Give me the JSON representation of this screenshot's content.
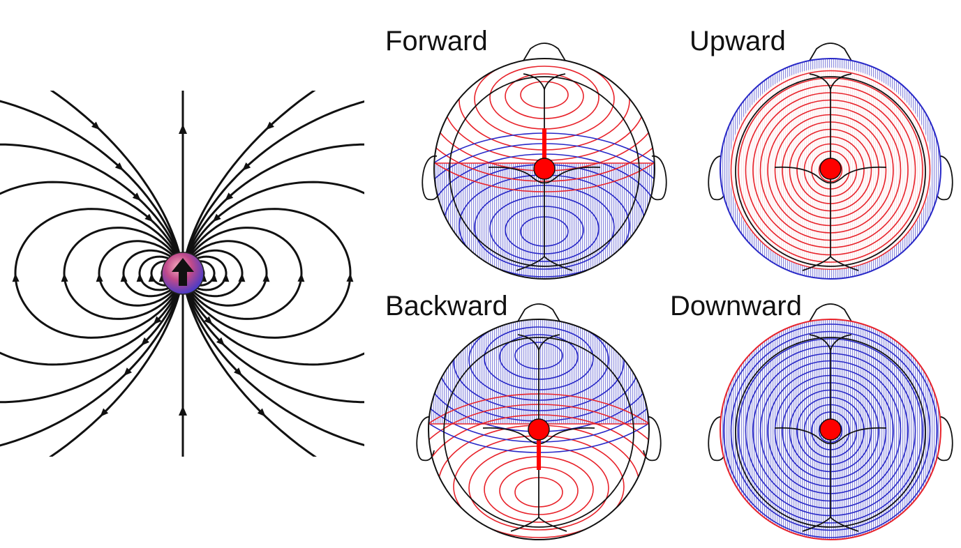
{
  "panels": {
    "forward": {
      "label": "Forward"
    },
    "upward": {
      "label": "Upward"
    },
    "backward": {
      "label": "Backward"
    },
    "downward": {
      "label": "Downward"
    }
  },
  "colors": {
    "positive": "#e8222a",
    "negative": "#2727c7",
    "negative_fill": "#8f8fe0",
    "dipole_dot": "#ff0000",
    "line": "#111111"
  },
  "icons": {
    "dipole": "dipole-sphere-icon",
    "dipole_arrow": "up-arrow-icon"
  }
}
